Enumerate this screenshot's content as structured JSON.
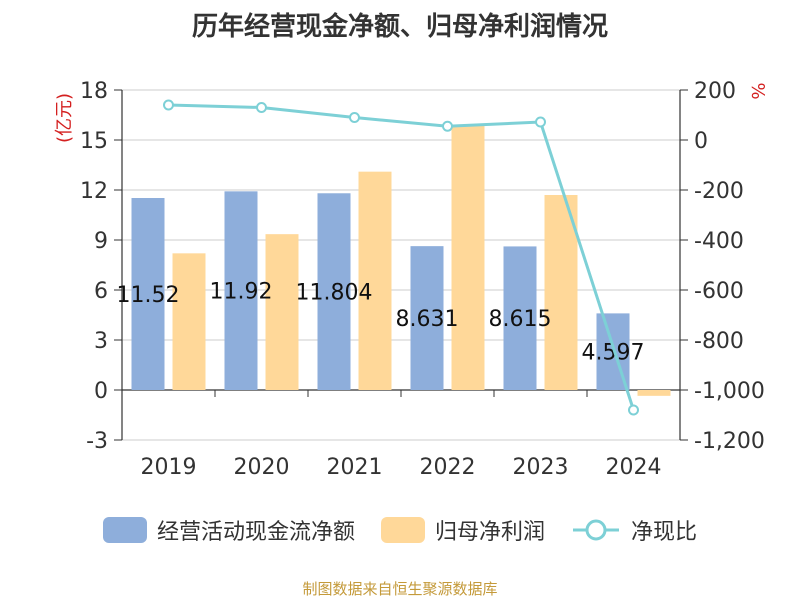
{
  "title": "历年经营现金净额、归母净利润情况",
  "source": "制图数据来自恒生聚源数据库",
  "colors": {
    "cashflow": "#8eaedb",
    "profit": "#ffd899",
    "ratio": "#7dd0d6",
    "axis_unit_label": "#d42020",
    "source_text": "#c49a3a"
  },
  "chart_data": {
    "type": "bar",
    "categories": [
      "2019",
      "2020",
      "2021",
      "2022",
      "2023",
      "2024"
    ],
    "left_axis": {
      "unit": "(亿元)",
      "ylim": [
        -3,
        18
      ],
      "ticks": [
        "18",
        "15",
        "12",
        "9",
        "6",
        "3",
        "0",
        "-3"
      ]
    },
    "right_axis": {
      "unit": "%",
      "ylim": [
        -1200,
        200
      ],
      "ticks": [
        "200",
        "0",
        "-200",
        "-400",
        "-600",
        "-800",
        "-1,000",
        "-1,200"
      ]
    },
    "series": [
      {
        "name": "经营活动现金流净额",
        "type": "bar",
        "axis": "left",
        "values": [
          11.52,
          11.92,
          11.804,
          8.631,
          8.615,
          4.597
        ],
        "labels": [
          "11.52",
          "11.92",
          "11.804",
          "8.631",
          "8.615",
          "4.597"
        ]
      },
      {
        "name": "归母净利润",
        "type": "bar",
        "axis": "left",
        "values": [
          8.2,
          9.35,
          13.1,
          15.9,
          11.7,
          -0.35
        ]
      },
      {
        "name": "净现比",
        "type": "line",
        "axis": "right",
        "values": [
          140,
          130,
          90,
          55,
          72,
          -1080
        ]
      }
    ],
    "grid": true,
    "legend_position": "bottom"
  }
}
